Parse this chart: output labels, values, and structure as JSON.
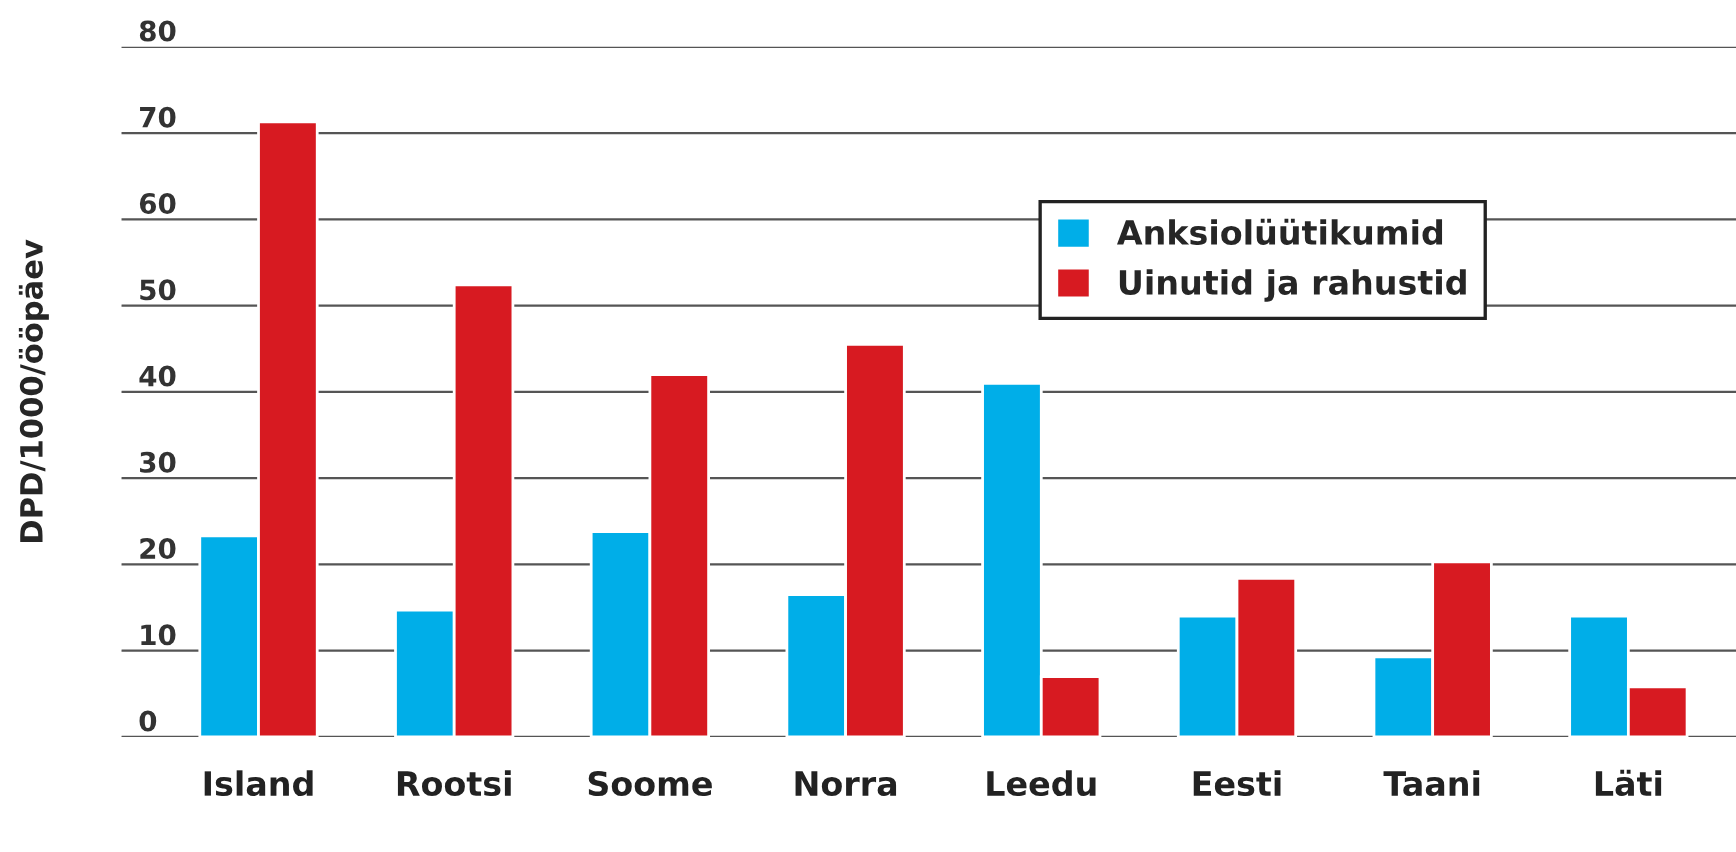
{
  "chart_data": {
    "type": "bar",
    "ylabel": "DPD/1000/ööpäev",
    "categories": [
      "Island",
      "Rootsi",
      "Soome",
      "Norra",
      "Leedu",
      "Eesti",
      "Taani",
      "Läti"
    ],
    "series": [
      {
        "name": "Anksiolüütikumid",
        "color": "#00aee8",
        "values": [
          23.3,
          14.7,
          23.8,
          16.5,
          41,
          14,
          9.3,
          14
        ]
      },
      {
        "name": "Uinutid ja rahustid",
        "color": "#d71a21",
        "values": [
          71.3,
          52.4,
          42,
          45.5,
          7,
          18.4,
          20.3,
          5.8
        ]
      }
    ],
    "ylim": [
      0,
      80
    ],
    "yticks": [
      0,
      10,
      20,
      30,
      40,
      50,
      60,
      70,
      80
    ],
    "grid": "y",
    "legend": "top right"
  }
}
